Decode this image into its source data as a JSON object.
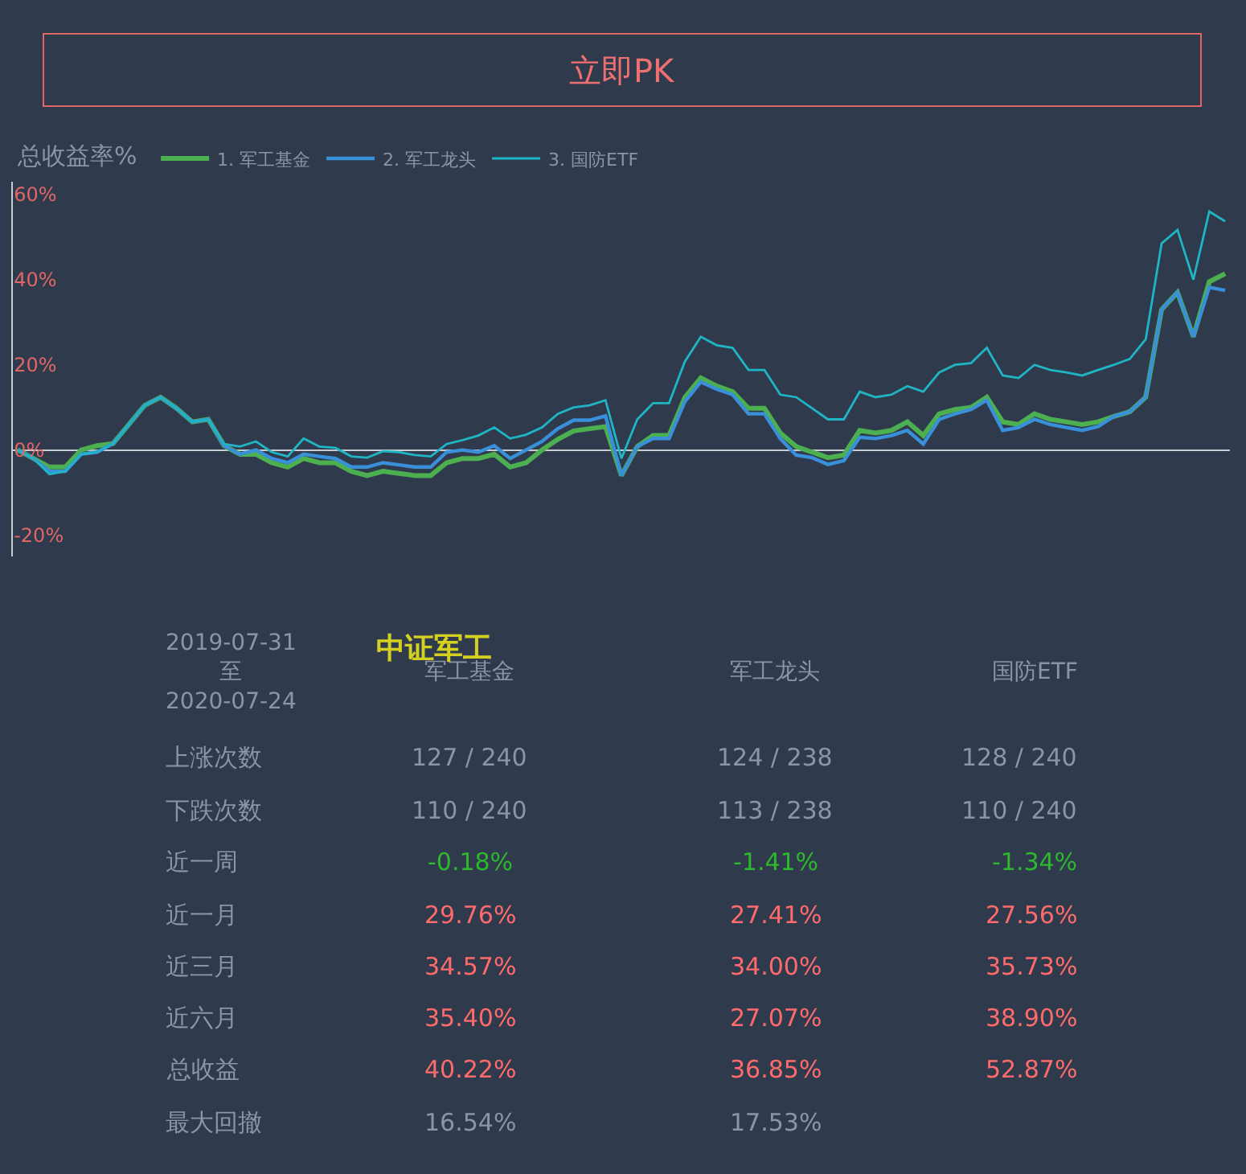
{
  "chart_data": {
    "type": "line",
    "ylabel": "总收益率%",
    "ylim": [
      -25,
      63
    ],
    "yticks": [
      {
        "value": -20,
        "label": "-20%"
      },
      {
        "value": 0,
        "label": "0%"
      },
      {
        "value": 20,
        "label": "20%"
      },
      {
        "value": 40,
        "label": "40%"
      },
      {
        "value": 60,
        "label": "60%"
      }
    ],
    "categories": [
      null,
      null,
      null,
      null,
      null,
      null,
      null,
      null,
      null,
      null,
      null,
      null,
      null,
      null,
      null,
      null,
      null,
      null,
      null,
      null,
      null,
      null,
      null,
      null,
      null,
      null,
      null,
      null,
      null,
      null,
      null,
      null,
      null,
      null,
      null,
      null,
      null,
      null,
      null,
      null,
      null,
      null,
      null,
      null,
      null,
      null,
      null,
      null,
      null,
      null,
      null,
      null,
      null,
      null,
      null,
      null,
      null,
      null,
      null,
      null,
      null,
      null,
      null,
      null,
      null,
      null,
      null,
      null,
      null,
      null,
      null,
      null,
      null,
      null,
      null,
      null,
      null
    ],
    "series": [
      {
        "name": "1. 军工基金",
        "color": "#4caf50",
        "values": [
          0,
          -2,
          -4,
          -4,
          0,
          1,
          1.5,
          6,
          10.5,
          12.4,
          9.8,
          6.6,
          7.2,
          1,
          -1,
          -1,
          -3,
          -4,
          -2,
          -3,
          -3,
          -5,
          -6,
          -5,
          -5.5,
          -6,
          -6,
          -3,
          -2,
          -2,
          -1,
          -4,
          -3,
          0,
          2.5,
          4.5,
          5,
          5.5,
          -6,
          0.8,
          3.4,
          3.4,
          12.4,
          16.9,
          15,
          13.7,
          9.8,
          9.8,
          4,
          0.8,
          -0.5,
          -1.8,
          -1.2,
          4.6,
          4,
          4.6,
          6.6,
          3.4,
          8.5,
          9.5,
          10,
          12.4,
          6.6,
          6,
          8.5,
          7.2,
          6.6,
          6,
          6.6,
          7.9,
          9,
          12.4,
          33,
          37,
          26.6,
          39.5,
          41.4
        ]
      },
      {
        "name": "2. 军工龙头",
        "color": "#3a8fd9",
        "values": [
          0,
          -2,
          -5,
          -5,
          -1,
          -0.5,
          1.5,
          6,
          10.5,
          12.4,
          9.8,
          6.6,
          7.2,
          1,
          -1,
          0,
          -2,
          -3,
          -1,
          -1.5,
          -2,
          -4,
          -4,
          -3,
          -3.5,
          -4,
          -4,
          -0.5,
          0,
          -0.5,
          1,
          -2,
          0,
          2,
          5,
          7,
          7,
          8,
          -6,
          0.8,
          2.7,
          2.7,
          11.4,
          16,
          14.3,
          13,
          8.5,
          8.5,
          2.7,
          -1.2,
          -1.8,
          -3.4,
          -2.5,
          3,
          2.7,
          3.4,
          4.6,
          1.4,
          7.2,
          8.5,
          9.5,
          11.7,
          4.6,
          5.3,
          7.2,
          6,
          5.3,
          4.6,
          5.5,
          7.9,
          9,
          12.4,
          33,
          37,
          26.6,
          38.2,
          37.5
        ]
      },
      {
        "name": "3. 国防ETF",
        "color": "#1fb5c4",
        "values": [
          0,
          -2,
          -5.7,
          -5,
          -1,
          -0.5,
          1.5,
          6,
          10.5,
          12.4,
          9.8,
          6.6,
          7.2,
          1.4,
          0.8,
          2,
          -0.5,
          -1.5,
          2.7,
          0.8,
          0.5,
          -1.5,
          -1.8,
          -0.3,
          -0.5,
          -1.2,
          -1.5,
          1.4,
          2.3,
          3.4,
          5.3,
          2.7,
          3.6,
          5.3,
          8.5,
          10,
          10.5,
          11.7,
          -2,
          7.2,
          11,
          11,
          20.8,
          26.6,
          24.6,
          24,
          18.8,
          18.8,
          13,
          12.4,
          9.8,
          7.2,
          7.2,
          13.7,
          12.4,
          13,
          15,
          13.7,
          18.2,
          20,
          20.4,
          24,
          17.5,
          16.9,
          20,
          18.8,
          18.2,
          17.5,
          18.8,
          20,
          21.4,
          26,
          48.5,
          51.7,
          40,
          56,
          53.7
        ]
      }
    ],
    "legend": "top left",
    "annotations": [
      "立即PK",
      "中证军工",
      "2019-07-31\n至\n2020-07-24",
      "军工基金",
      "军工龙头",
      "国防ETF",
      "上涨次数",
      "127 / 240",
      "124 / 238",
      "128 / 240",
      "下跌次数",
      "110 / 240",
      "113 / 238",
      "110 / 240",
      "近一周",
      "-0.18%",
      "-1.41%",
      "-1.34%",
      "近一月",
      "29.76%",
      "27.41%",
      "27.56%",
      "近三月",
      "34.57%",
      "34.00%",
      "35.73%",
      "近六月",
      "35.40%",
      "27.07%",
      "38.90%",
      "总收益",
      "40.22%",
      "36.85%",
      "52.87%",
      "最大回撤",
      "16.54%",
      "17.53%"
    ]
  }
}
